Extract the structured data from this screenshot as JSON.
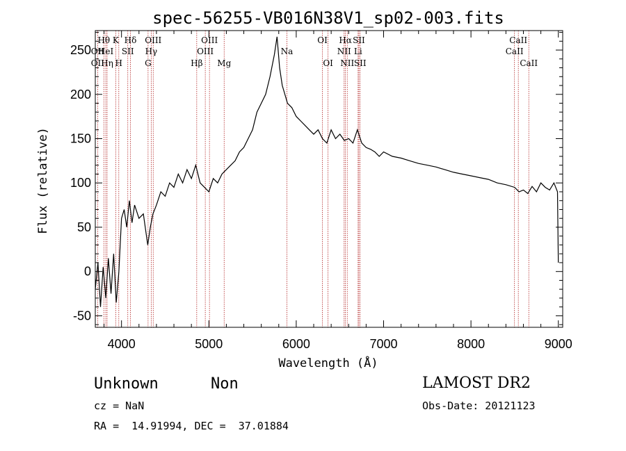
{
  "chart_data": {
    "type": "line",
    "title": "spec-56255-VB016N38V1_sp02-003.fits",
    "xlabel": "Wavelength (Å)",
    "ylabel": "Flux (relative)",
    "xlim": [
      3700,
      9050
    ],
    "ylim": [
      -63,
      272
    ],
    "xticks": [
      4000,
      5000,
      6000,
      7000,
      8000,
      9000
    ],
    "yticks": [
      -50,
      0,
      50,
      100,
      150,
      200,
      250
    ],
    "grid": false,
    "series": [
      {
        "x": [
          3700,
          3730,
          3760,
          3790,
          3820,
          3850,
          3880,
          3910,
          3940,
          3970,
          4000,
          4030,
          4060,
          4090,
          4120,
          4150,
          4200,
          4250,
          4300,
          4330,
          4360,
          4400,
          4450,
          4500,
          4550,
          4600,
          4650,
          4700,
          4750,
          4800,
          4850,
          4900,
          4950,
          5000,
          5050,
          5100,
          5150,
          5200,
          5250,
          5300,
          5350,
          5400,
          5450,
          5500,
          5550,
          5600,
          5650,
          5700,
          5750,
          5780,
          5810,
          5840,
          5870,
          5900,
          5950,
          6000,
          6050,
          6100,
          6150,
          6200,
          6250,
          6300,
          6350,
          6400,
          6450,
          6500,
          6550,
          6600,
          6650,
          6700,
          6750,
          6800,
          6850,
          6900,
          6950,
          7000,
          7100,
          7200,
          7300,
          7400,
          7500,
          7600,
          7700,
          7800,
          7900,
          8000,
          8100,
          8200,
          8300,
          8400,
          8500,
          8550,
          8600,
          8650,
          8700,
          8750,
          8800,
          8850,
          8900,
          8950,
          8990,
          9000
        ],
        "y": [
          -20,
          10,
          -40,
          5,
          -30,
          15,
          -25,
          20,
          -35,
          0,
          60,
          70,
          50,
          80,
          55,
          75,
          60,
          65,
          30,
          50,
          65,
          75,
          90,
          85,
          100,
          95,
          110,
          100,
          115,
          105,
          120,
          100,
          95,
          90,
          105,
          100,
          110,
          115,
          120,
          125,
          135,
          140,
          150,
          160,
          180,
          190,
          200,
          220,
          245,
          265,
          230,
          210,
          200,
          190,
          185,
          175,
          170,
          165,
          160,
          155,
          160,
          150,
          145,
          160,
          150,
          155,
          148,
          150,
          145,
          160,
          145,
          140,
          138,
          135,
          130,
          135,
          130,
          128,
          125,
          122,
          120,
          118,
          115,
          112,
          110,
          108,
          106,
          104,
          100,
          98,
          95,
          90,
          92,
          88,
          96,
          90,
          100,
          95,
          92,
          100,
          90,
          10
        ]
      }
    ],
    "spectral_lines": [
      {
        "label": "Hθ",
        "wavelength": 3798,
        "row": 1
      },
      {
        "label": "OII",
        "wavelength": 3727,
        "row": 2
      },
      {
        "label": "HeI",
        "wavelength": 3820,
        "row": 2
      },
      {
        "label": "OII",
        "wavelength": 3727,
        "row": 3
      },
      {
        "label": "Hη",
        "wavelength": 3835,
        "row": 3
      },
      {
        "label": "K",
        "wavelength": 3934,
        "row": 1
      },
      {
        "label": "SII",
        "wavelength": 4072,
        "row": 2
      },
      {
        "label": "H",
        "wavelength": 3969,
        "row": 3
      },
      {
        "label": "Hδ",
        "wavelength": 4102,
        "row": 1
      },
      {
        "label": "OIII",
        "wavelength": 4363,
        "row": 1
      },
      {
        "label": "Hγ",
        "wavelength": 4340,
        "row": 2
      },
      {
        "label": "G",
        "wavelength": 4304,
        "row": 3
      },
      {
        "label": "OIII",
        "wavelength": 5007,
        "row": 1
      },
      {
        "label": "OIII",
        "wavelength": 4959,
        "row": 2
      },
      {
        "label": "Hβ",
        "wavelength": 4861,
        "row": 3
      },
      {
        "label": "Mg",
        "wavelength": 5175,
        "row": 3
      },
      {
        "label": "Na",
        "wavelength": 5893,
        "row": 2
      },
      {
        "label": "OI",
        "wavelength": 6300,
        "row": 1
      },
      {
        "label": "OI",
        "wavelength": 6364,
        "row": 3
      },
      {
        "label": "Hα",
        "wavelength": 6563,
        "row": 1
      },
      {
        "label": "SII",
        "wavelength": 6717,
        "row": 1
      },
      {
        "label": "NII",
        "wavelength": 6548,
        "row": 2
      },
      {
        "label": "Li",
        "wavelength": 6708,
        "row": 2
      },
      {
        "label": "NII",
        "wavelength": 6584,
        "row": 3
      },
      {
        "label": "SII",
        "wavelength": 6731,
        "row": 3
      },
      {
        "label": "CaII",
        "wavelength": 8542,
        "row": 1
      },
      {
        "label": "CaII",
        "wavelength": 8498,
        "row": 2
      },
      {
        "label": "CaII",
        "wavelength": 8662,
        "row": 3
      }
    ]
  },
  "info": {
    "object_type": "Unknown",
    "subclass": "Non",
    "survey": "LAMOST DR2",
    "cz": "cz = NaN",
    "obs_date": "Obs-Date: 20121123",
    "coords": "RA =  14.91994, DEC =  37.01884"
  },
  "colors": {
    "line": "#000000",
    "marker_lines": "#b22222",
    "background": "#ffffff"
  }
}
